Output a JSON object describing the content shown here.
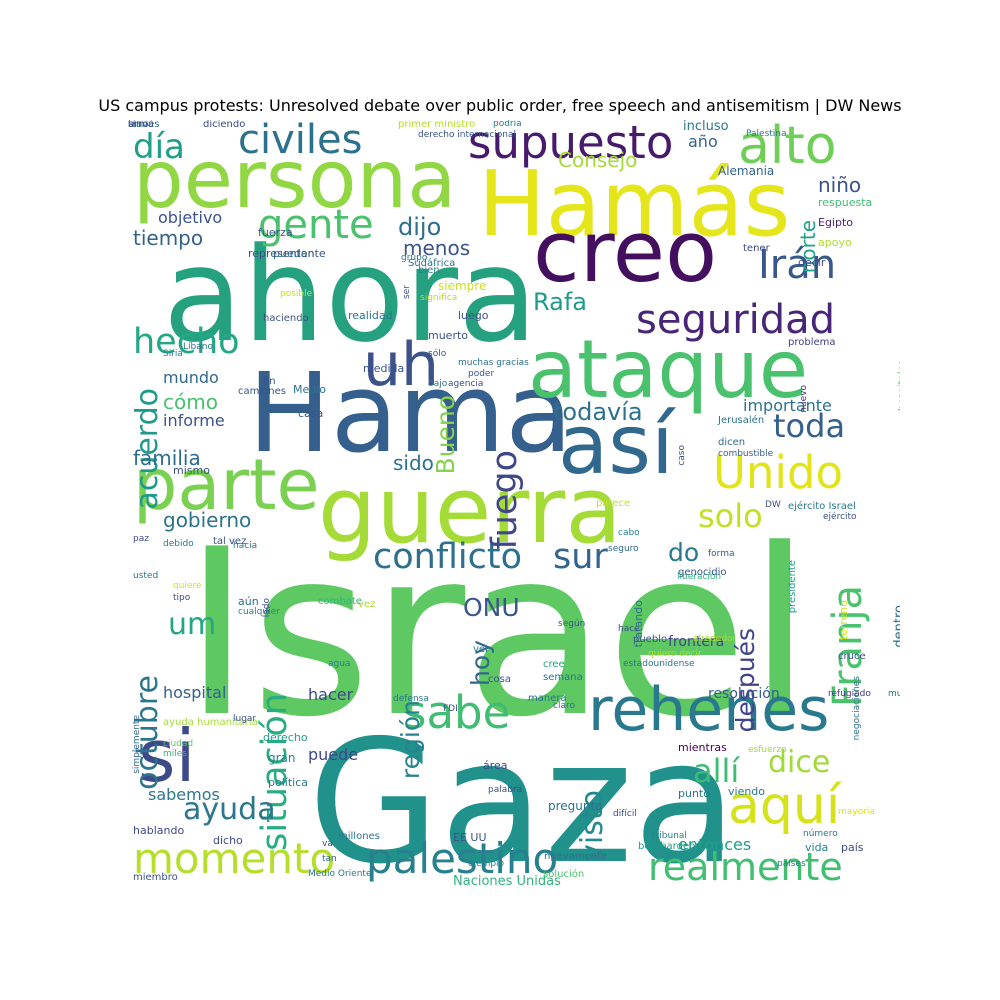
{
  "title": "US campus protests: Unresolved debate over public order, free speech and antisemitism | DW News",
  "palette": {
    "background": "#ffffff",
    "title_color": "#000000",
    "colormap": "viridis"
  },
  "words": [
    {
      "text": "Israel",
      "color": "#5ec962"
    },
    {
      "text": "Gaza",
      "color": "#21918c"
    },
    {
      "text": "Hamás",
      "color": "#e4e51a"
    },
    {
      "text": "ahora",
      "color": "#26a17f"
    },
    {
      "text": "Hama",
      "color": "#355f8d"
    },
    {
      "text": "guerra",
      "color": "#a5db36"
    },
    {
      "text": "ataque",
      "color": "#4ac16d"
    },
    {
      "text": "persona",
      "color": "#90d743"
    },
    {
      "text": "creo",
      "color": "#440f5e"
    },
    {
      "text": "así",
      "color": "#31688e"
    },
    {
      "text": "parte",
      "color": "#7ad151"
    },
    {
      "text": "rehenes",
      "color": "#2a788e"
    },
    {
      "text": "si",
      "color": "#3e4989"
    },
    {
      "text": "aquí",
      "color": "#d5e21a"
    },
    {
      "text": "palestino",
      "color": "#27808e"
    },
    {
      "text": "momento",
      "color": "#b5de2b"
    },
    {
      "text": "realmente",
      "color": "#42be71"
    },
    {
      "text": "alto",
      "color": "#6ece58"
    },
    {
      "text": "uh",
      "color": "#3b528b"
    },
    {
      "text": "Unido",
      "color": "#e2e418"
    },
    {
      "text": "supuesto",
      "color": "#481a6c"
    },
    {
      "text": "sabe",
      "color": "#40bd72"
    },
    {
      "text": "Franja",
      "color": "#4ac16d"
    },
    {
      "text": "civiles",
      "color": "#2c728e"
    },
    {
      "text": "gente",
      "color": "#4ac16d"
    },
    {
      "text": "Irán",
      "color": "#38588c"
    },
    {
      "text": "seguridad",
      "color": "#482677"
    },
    {
      "text": "hecho",
      "color": "#22a884"
    },
    {
      "text": "conflicto",
      "color": "#2d708e"
    },
    {
      "text": "sur",
      "color": "#32648e"
    },
    {
      "text": "situación",
      "color": "#27ad81"
    },
    {
      "text": "octubre",
      "color": "#2a768e"
    },
    {
      "text": "fuego",
      "color": "#3f4788"
    },
    {
      "text": "toda",
      "color": "#355f8d"
    },
    {
      "text": "solo",
      "color": "#c0df25"
    },
    {
      "text": "día",
      "color": "#1f9e89"
    },
    {
      "text": "acuerdo",
      "color": "#1f9a8a"
    },
    {
      "text": "ayuda",
      "color": "#2a778e"
    },
    {
      "text": "allí",
      "color": "#3dbc74"
    },
    {
      "text": "después",
      "color": "#414487"
    },
    {
      "text": "dice",
      "color": "#a0da39"
    },
    {
      "text": "visto",
      "color": "#23898e"
    },
    {
      "text": "región",
      "color": "#26828e"
    },
    {
      "text": "Bueno",
      "color": "#84d44b"
    },
    {
      "text": "um",
      "color": "#22a785"
    },
    {
      "text": "hoy",
      "color": "#31678e"
    },
    {
      "text": "ONU",
      "color": "#3a548c"
    },
    {
      "text": "do",
      "color": "#29798e"
    },
    {
      "text": "todavía",
      "color": "#2d718e"
    },
    {
      "text": "Rafa",
      "color": "#1e9b8a"
    },
    {
      "text": "norte",
      "color": "#1fa287"
    },
    {
      "text": "Consejo",
      "color": "#a5db36"
    },
    {
      "text": "dijo",
      "color": "#2e6e8e"
    },
    {
      "text": "gobierno",
      "color": "#2c738e"
    },
    {
      "text": "familia",
      "color": "#2f6c8e"
    },
    {
      "text": "sido",
      "color": "#2c738e"
    },
    {
      "text": "tiempo",
      "color": "#33638d"
    },
    {
      "text": "menos",
      "color": "#3a548c"
    },
    {
      "text": "cómo",
      "color": "#4ac16d"
    },
    {
      "text": "mundo",
      "color": "#31688e"
    },
    {
      "text": "informe",
      "color": "#3b528b"
    },
    {
      "text": "objetivo",
      "color": "#3b528b"
    },
    {
      "text": "hospital",
      "color": "#34608d"
    },
    {
      "text": "hacer",
      "color": "#3f4788"
    },
    {
      "text": "puede",
      "color": "#3e4989"
    },
    {
      "text": "sabemos",
      "color": "#2a788e"
    },
    {
      "text": "año",
      "color": "#33638d"
    },
    {
      "text": "niño",
      "color": "#3b528b"
    },
    {
      "text": "importante",
      "color": "#2c728e"
    },
    {
      "text": "entonces",
      "color": "#1fa088"
    },
    {
      "text": "Naciones Unidas",
      "color": "#2fb47c"
    },
    {
      "text": "resolución",
      "color": "#38598c"
    },
    {
      "text": "frontera",
      "color": "#414487"
    },
    {
      "text": "dentro",
      "color": "#2f6c8e"
    },
    {
      "text": "incluso",
      "color": "#2a788e"
    },
    {
      "text": "Alemania",
      "color": "#33638d"
    },
    {
      "text": "respuesta",
      "color": "#3dbc74"
    },
    {
      "text": "Egipto",
      "color": "#482475"
    },
    {
      "text": "apoyo",
      "color": "#addc30"
    },
    {
      "text": "decir",
      "color": "#3e4989"
    },
    {
      "text": "tener",
      "color": "#3e4989"
    },
    {
      "text": "hospitales",
      "color": "#5ec962"
    },
    {
      "text": "problema",
      "color": "#424086"
    },
    {
      "text": "nuevo",
      "color": "#46337f"
    },
    {
      "text": "Jerusalén",
      "color": "#2c738e"
    },
    {
      "text": "combustible",
      "color": "#355f8d"
    },
    {
      "text": "caso",
      "color": "#3b528b"
    },
    {
      "text": "dicen",
      "color": "#2f6c8e"
    },
    {
      "text": "ejército Israel",
      "color": "#2a788e"
    },
    {
      "text": "ejército",
      "color": "#3b528b"
    },
    {
      "text": "DW",
      "color": "#3b528b"
    },
    {
      "text": "parece",
      "color": "#c8e020"
    },
    {
      "text": "cabo",
      "color": "#26828e"
    },
    {
      "text": "seguro",
      "color": "#31688e"
    },
    {
      "text": "forma",
      "color": "#38598c"
    },
    {
      "text": "liberación",
      "color": "#32b67a"
    },
    {
      "text": "genocidio",
      "color": "#38598c"
    },
    {
      "text": "terreno",
      "color": "#d2e21b"
    },
    {
      "text": "mucha",
      "color": "#2a788e"
    },
    {
      "text": "refugiado",
      "color": "#46337f"
    },
    {
      "text": "cruce",
      "color": "#3b528b"
    },
    {
      "text": "alrededor",
      "color": "#a8db34"
    },
    {
      "text": "quiero decir",
      "color": "#b5de2b"
    },
    {
      "text": "presidente",
      "color": "#1f9e89"
    },
    {
      "text": "tratando",
      "color": "#2c728e"
    },
    {
      "text": "mientras",
      "color": "#440154"
    },
    {
      "text": "viendo",
      "color": "#2a788e"
    },
    {
      "text": "esfuerzo",
      "color": "#a0da39"
    },
    {
      "text": "negociaciones",
      "color": "#2c728e"
    },
    {
      "text": "mayoría",
      "color": "#dde318"
    },
    {
      "text": "número",
      "color": "#2a788e"
    },
    {
      "text": "países",
      "color": "#2a788e"
    },
    {
      "text": "país",
      "color": "#3e4989"
    },
    {
      "text": "vida",
      "color": "#25838e"
    },
    {
      "text": "punto",
      "color": "#2a788e"
    },
    {
      "text": "bombardeo",
      "color": "#1f9a8a"
    },
    {
      "text": "tribunal",
      "color": "#26828e"
    },
    {
      "text": "pregunta",
      "color": "#2c728e"
    },
    {
      "text": "área",
      "color": "#3e4989"
    },
    {
      "text": "palabra",
      "color": "#3b528b"
    },
    {
      "text": "EE UU",
      "color": "#3b528b"
    },
    {
      "text": "solución",
      "color": "#4ac16d"
    },
    {
      "text": "millones",
      "color": "#2c728e"
    },
    {
      "text": "Medio Oriente",
      "color": "#2c738e"
    },
    {
      "text": "tan",
      "color": "#33638d"
    },
    {
      "text": "va",
      "color": "#3e4989"
    },
    {
      "text": "gran",
      "color": "#26828e"
    },
    {
      "text": "política",
      "color": "#2a788e"
    },
    {
      "text": "dicho",
      "color": "#3e4989"
    },
    {
      "text": "miembro",
      "color": "#3b528b"
    },
    {
      "text": "hablando",
      "color": "#3e4989"
    },
    {
      "text": "simplemente",
      "color": "#31688e"
    },
    {
      "text": "derecho",
      "color": "#1fa088"
    },
    {
      "text": "ayuda humanitaria",
      "color": "#a5db36"
    },
    {
      "text": "lugar",
      "color": "#3b528b"
    },
    {
      "text": "ciudad",
      "color": "#5ec962"
    },
    {
      "text": "miles",
      "color": "#35b779"
    },
    {
      "text": "FDI",
      "color": "#3b528b"
    },
    {
      "text": "claro",
      "color": "#2c738e"
    },
    {
      "text": "manera",
      "color": "#2c728e"
    },
    {
      "text": "defensa",
      "color": "#2a788e"
    },
    {
      "text": "estadounidense",
      "color": "#2c738e"
    },
    {
      "text": "semana",
      "color": "#2c728e"
    },
    {
      "text": "cree",
      "color": "#26a17f"
    },
    {
      "text": "difícil",
      "color": "#3e4989"
    },
    {
      "text": "cosa",
      "color": "#3b528b"
    },
    {
      "text": "hace",
      "color": "#3b528b"
    },
    {
      "text": "ver",
      "color": "#2a788e"
    },
    {
      "text": "agua",
      "color": "#26828e"
    },
    {
      "text": "según",
      "color": "#3b528b"
    },
    {
      "text": "pueblo",
      "color": "#3b528b"
    },
    {
      "text": "vez",
      "color": "#a8db34"
    },
    {
      "text": "combate",
      "color": "#32b67a"
    },
    {
      "text": "lado",
      "color": "#3e4989"
    },
    {
      "text": "aún",
      "color": "#2c728e"
    },
    {
      "text": "hacia",
      "color": "#2c728e"
    },
    {
      "text": "tal vez",
      "color": "#3b528b"
    },
    {
      "text": "debido",
      "color": "#2a788e"
    },
    {
      "text": "cualquier",
      "color": "#26828e"
    },
    {
      "text": "tipo",
      "color": "#3e4989"
    },
    {
      "text": "quiere",
      "color": "#d5e21a"
    },
    {
      "text": "usted",
      "color": "#2a788e"
    },
    {
      "text": "paz",
      "color": "#3e4989"
    },
    {
      "text": "mismo",
      "color": "#3b528b"
    },
    {
      "text": "casa",
      "color": "#3b528b"
    },
    {
      "text": "Medio",
      "color": "#2c728e"
    },
    {
      "text": "agencia",
      "color": "#3e4989"
    },
    {
      "text": "poder",
      "color": "#3b528b"
    },
    {
      "text": "bajo",
      "color": "#2c728e"
    },
    {
      "text": "medida",
      "color": "#3b528b"
    },
    {
      "text": "muerto",
      "color": "#3b528b"
    },
    {
      "text": "camiones",
      "color": "#3b528b"
    },
    {
      "text": "realidad",
      "color": "#2a788e"
    },
    {
      "text": "luego",
      "color": "#3b528b"
    },
    {
      "text": "haciendo",
      "color": "#3b528b"
    },
    {
      "text": "Líbano",
      "color": "#2c728e"
    },
    {
      "text": "Siria",
      "color": "#26828e"
    },
    {
      "text": "muchas gracias",
      "color": "#2c728e"
    },
    {
      "text": "sólo",
      "color": "#3b528b"
    },
    {
      "text": "fin",
      "color": "#3b528b"
    },
    {
      "text": "pueden",
      "color": "#2a788e"
    },
    {
      "text": "fuerza",
      "color": "#3b528b"
    },
    {
      "text": "bien",
      "color": "#26828e"
    },
    {
      "text": "Sudáfrica",
      "color": "#2c728e"
    },
    {
      "text": "significa",
      "color": "#b5de2b"
    },
    {
      "text": "posible",
      "color": "#c8e020"
    },
    {
      "text": "grupo",
      "color": "#2c728e"
    },
    {
      "text": "ser",
      "color": "#3b528b"
    },
    {
      "text": "siempre",
      "color": "#c8e020"
    },
    {
      "text": "representante",
      "color": "#3b528b"
    },
    {
      "text": "diciendo",
      "color": "#3e4989"
    },
    {
      "text": "primer ministro",
      "color": "#b5de2b"
    },
    {
      "text": "derecho internacional",
      "color": "#3b528b"
    },
    {
      "text": "podría",
      "color": "#2a788e"
    },
    {
      "text": "Palestina",
      "color": "#2a788e"
    },
    {
      "text": "ejemplo",
      "color": "#26828e"
    },
    {
      "text": "nuevamente",
      "color": "#2c728e"
    },
    {
      "text": "sino",
      "color": "#3b528b"
    },
    {
      "text": "través",
      "color": "#2c728e"
    },
    {
      "text": "arma",
      "color": "#3b528b"
    }
  ]
}
